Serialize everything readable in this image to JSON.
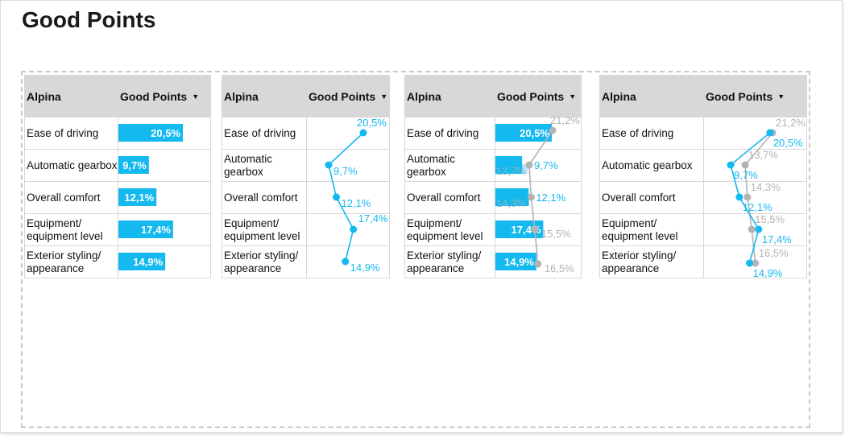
{
  "page": {
    "title": "Good Points"
  },
  "table": {
    "header_brand": "Alpina",
    "header_metric": "Good Points",
    "sort_icon": "caret-down-icon",
    "rows": [
      {
        "label_lines": [
          "Ease of driving"
        ],
        "label_lines_narrow": [
          "Ease of driving"
        ],
        "current": "20,5%",
        "previous": "21,2%"
      },
      {
        "label_lines": [
          "Automatic gearbox"
        ],
        "label_lines_narrow": [
          "Automatic",
          "gearbox"
        ],
        "current": "9,7%",
        "previous": "13,7%"
      },
      {
        "label_lines": [
          "Overall comfort"
        ],
        "label_lines_narrow": [
          "Overall comfort"
        ],
        "current": "12,1%",
        "previous": "14,3%"
      },
      {
        "label_lines": [
          "Equipment/",
          "equipment level"
        ],
        "label_lines_narrow": [
          "Equipment/",
          "equipment level"
        ],
        "current": "17,4%",
        "previous": "15,5%"
      },
      {
        "label_lines": [
          "Exterior styling/",
          "appearance"
        ],
        "label_lines_narrow": [
          "Exterior styling/",
          "appearance"
        ],
        "current": "14,9%",
        "previous": "16,5%"
      }
    ]
  },
  "chart_data": [
    {
      "type": "bar",
      "categories": [
        "Ease of driving",
        "Automatic gearbox",
        "Overall comfort",
        "Equipment/ equipment level",
        "Exterior styling/ appearance"
      ],
      "series": [
        {
          "values": [
            20.5,
            9.7,
            12.1,
            17.4,
            14.9
          ]
        }
      ],
      "colors": {
        "current": "#14b9ef"
      }
    },
    {
      "type": "line",
      "categories": [
        "Ease of driving",
        "Automatic gearbox",
        "Overall comfort",
        "Equipment/ equipment level",
        "Exterior styling/ appearance"
      ],
      "series": [
        {
          "values": [
            20.5,
            9.7,
            12.1,
            17.4,
            14.9
          ]
        }
      ],
      "colors": {
        "current": "#14b9ef"
      }
    },
    {
      "type": "bar",
      "categories": [
        "Ease of driving",
        "Automatic gearbox",
        "Overall comfort",
        "Equipment/ equipment level",
        "Exterior styling/ appearance"
      ],
      "series": [
        {
          "values": [
            20.5,
            9.7,
            12.1,
            17.4,
            14.9
          ]
        },
        {
          "values": [
            21.2,
            13.7,
            14.3,
            15.5,
            16.5
          ]
        }
      ],
      "colors": {
        "current": "#14b9ef",
        "previous": "#b3b3b3"
      }
    },
    {
      "type": "line",
      "categories": [
        "Ease of driving",
        "Automatic gearbox",
        "Overall comfort",
        "Equipment/ equipment level",
        "Exterior styling/ appearance"
      ],
      "series": [
        {
          "values": [
            20.5,
            9.7,
            12.1,
            17.4,
            14.9
          ]
        },
        {
          "values": [
            21.2,
            13.7,
            14.3,
            15.5,
            16.5
          ]
        }
      ],
      "colors": {
        "current": "#14b9ef",
        "previous": "#b3b3b3"
      }
    }
  ]
}
